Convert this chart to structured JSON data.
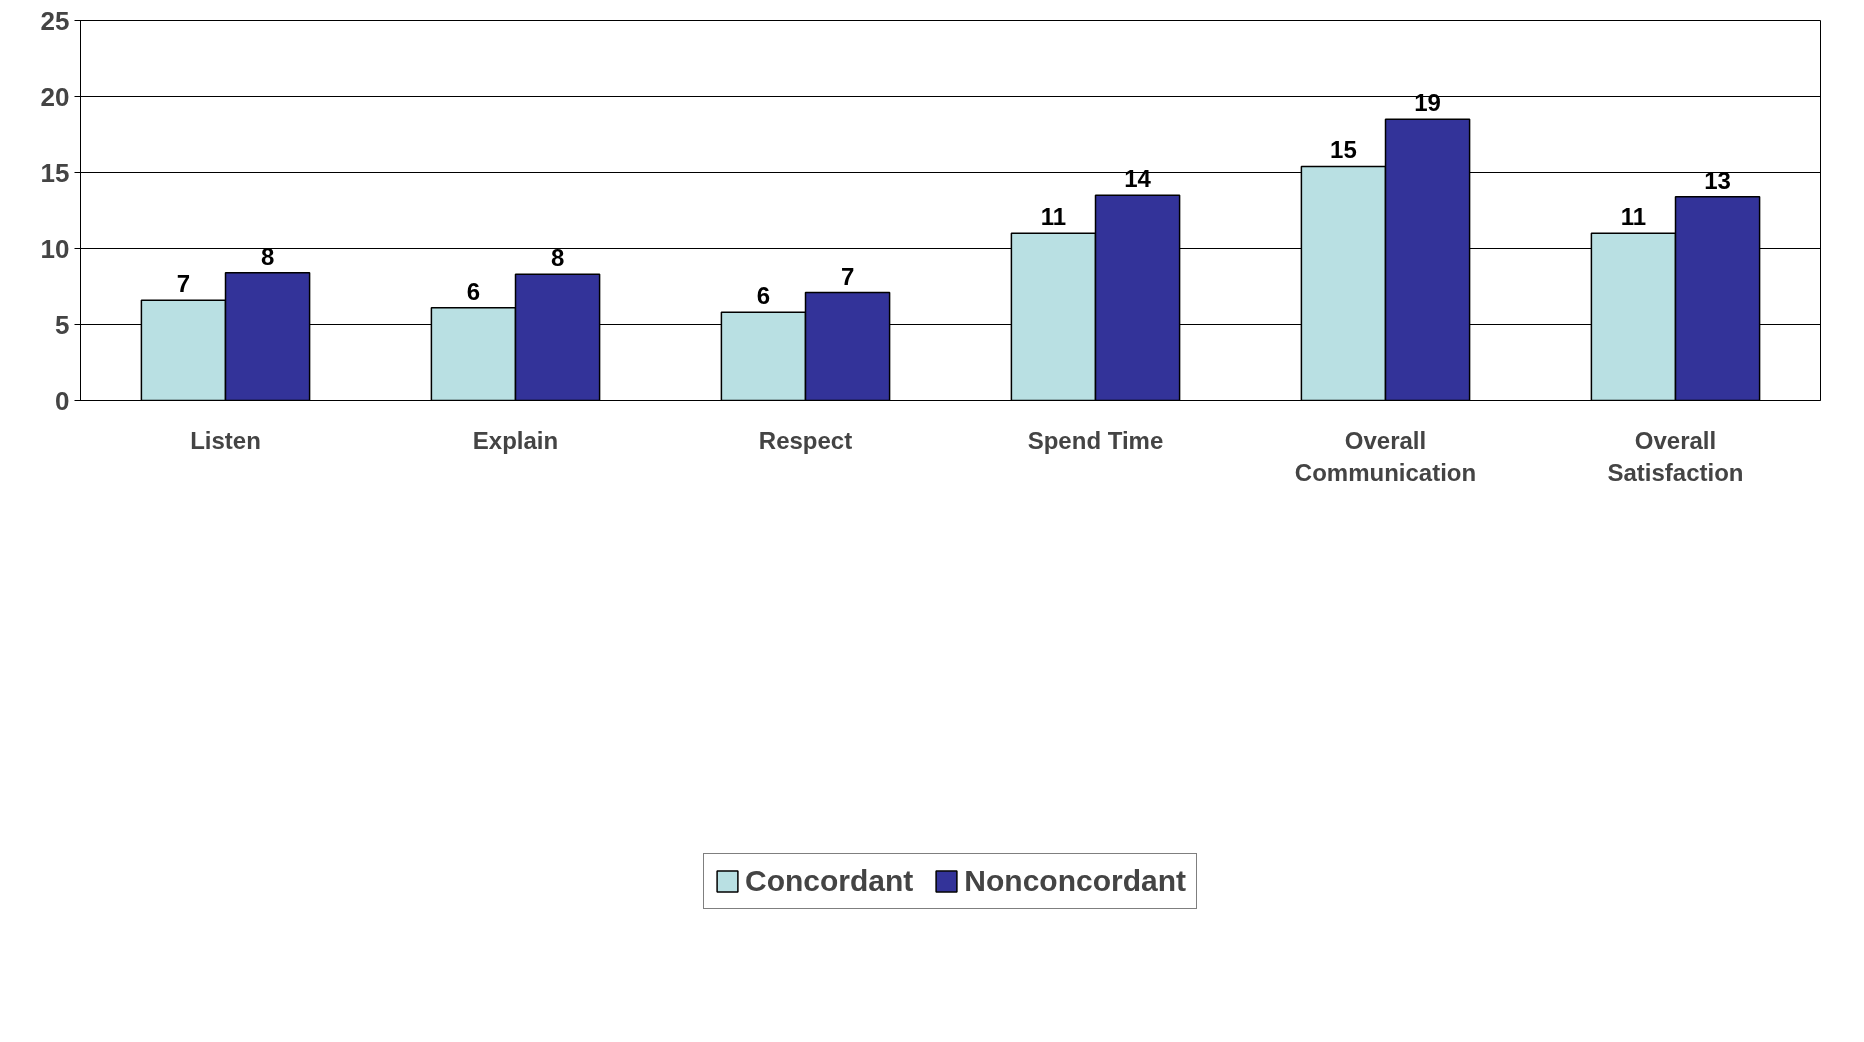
{
  "chart_data": {
    "type": "bar",
    "categories": [
      "Listen",
      "Explain",
      "Respect",
      "Spend Time",
      "Overall Communication",
      "Overall Satisfaction"
    ],
    "series": [
      {
        "name": "Concordant",
        "color": "#b9e0e3",
        "values": [
          6.6,
          6.1,
          5.8,
          11.0,
          15.4,
          11.0
        ],
        "value_labels": [
          "7",
          "6",
          "6",
          "11",
          "15",
          "11"
        ]
      },
      {
        "name": "Nonconcordant",
        "color": "#333399",
        "values": [
          8.4,
          8.3,
          7.1,
          13.5,
          18.5,
          13.4
        ],
        "value_labels": [
          "8",
          "8",
          "7",
          "14",
          "19",
          "13"
        ]
      }
    ],
    "ylim": [
      0,
      25
    ],
    "yticks": [
      0,
      5,
      10,
      15,
      20,
      25
    ],
    "grid": "y",
    "legend": "bottom"
  }
}
